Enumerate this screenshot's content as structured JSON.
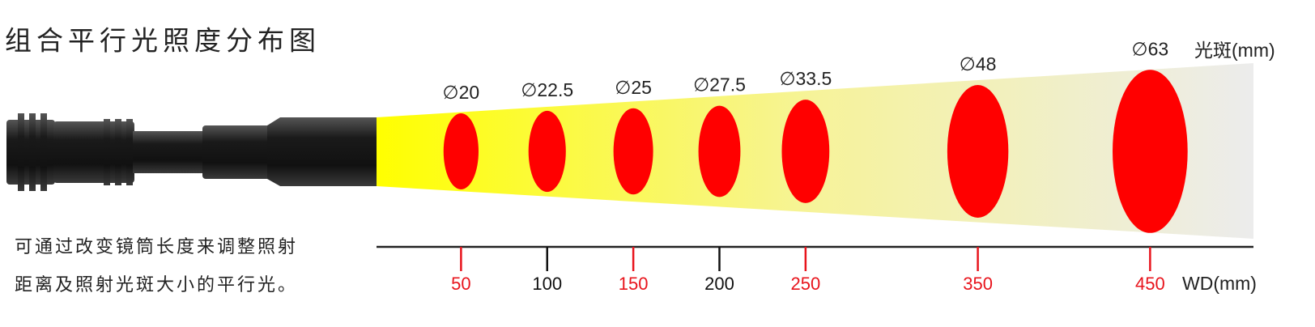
{
  "chart_data": {
    "type": "spot",
    "title": "组合平行光照度分布图",
    "annotations": [
      "可通过改变镜筒长度来调整照射",
      "距离及照射光斑大小的平行光。"
    ],
    "y_label": "光斑(mm)",
    "x_label": "WD(mm)",
    "x": [
      50,
      100,
      150,
      200,
      250,
      350,
      450
    ],
    "values": [
      20,
      22.5,
      25,
      27.5,
      33.5,
      48,
      63
    ],
    "value_labels": [
      "∅20",
      "∅22.5",
      "∅25",
      "∅27.5",
      "∅33.5",
      "∅48",
      "∅63"
    ],
    "color": "#ff0000",
    "xlim": [
      0,
      510
    ],
    "xticks": [
      50,
      100,
      150,
      200,
      250,
      350,
      450
    ],
    "xtick_colors": [
      "#e8141c",
      "#111111",
      "#e8141c",
      "#111111",
      "#e8141c",
      "#e8141c",
      "#e8141c"
    ]
  }
}
